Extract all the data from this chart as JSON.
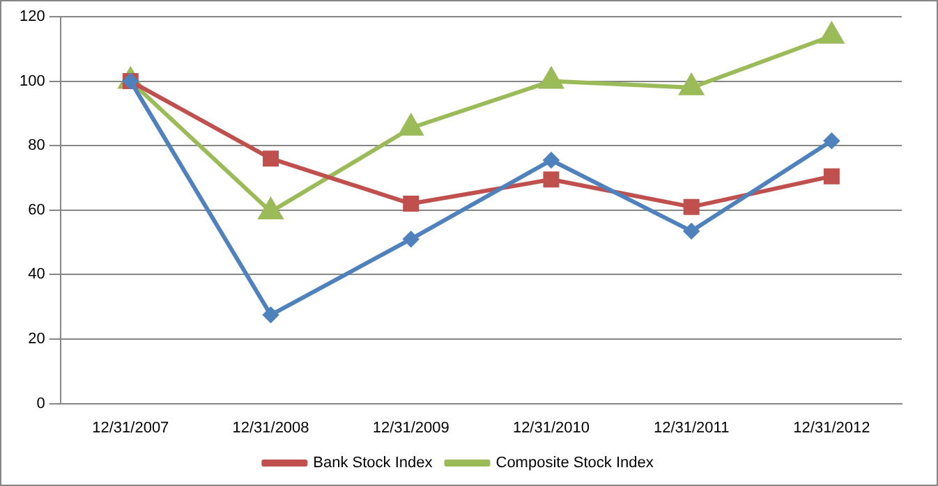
{
  "chart_data": {
    "type": "line",
    "categories": [
      "12/31/2007",
      "12/31/2008",
      "12/31/2009",
      "12/31/2010",
      "12/31/2011",
      "12/31/2012"
    ],
    "series": [
      {
        "color": "#4f81bd",
        "marker": "diamond",
        "values": [
          100,
          27.5,
          51,
          75.5,
          53.5,
          81.5
        ]
      },
      {
        "name": "Bank Stock Index",
        "color": "#c0504d",
        "marker": "square",
        "values": [
          100,
          76,
          62,
          69.5,
          61,
          70.5
        ]
      },
      {
        "name": "Composite Stock Index",
        "color": "#9bbb59",
        "marker": "triangle",
        "values": [
          100,
          59.5,
          85.5,
          100,
          98,
          114
        ]
      }
    ],
    "ylim": [
      0,
      120
    ],
    "yticks": [
      0,
      20,
      40,
      60,
      80,
      100,
      120
    ],
    "grid": "y",
    "legend": "bottom",
    "line_style": "solid"
  }
}
